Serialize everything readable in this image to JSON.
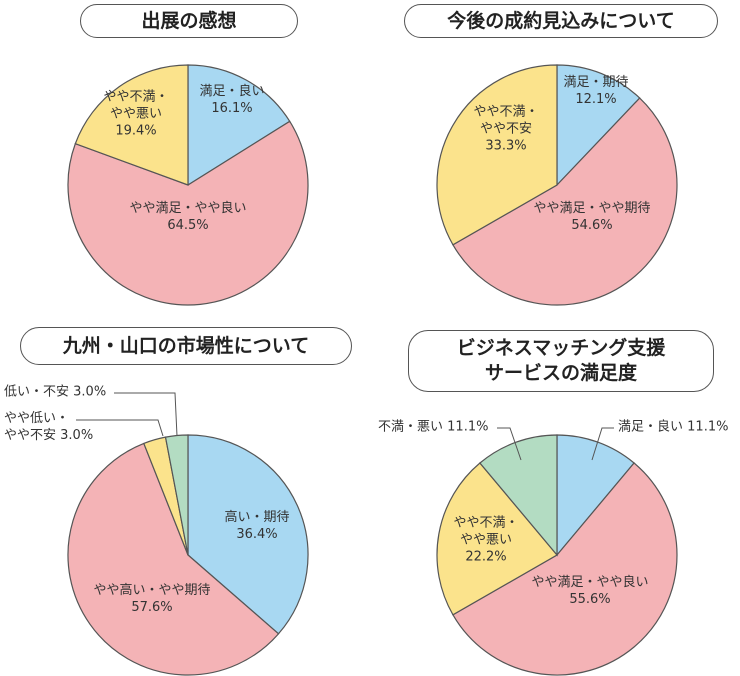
{
  "chart_data": [
    {
      "type": "pie",
      "title": "出展の感想",
      "categories": [
        "満足・良い",
        "やや満足・やや良い",
        "やや不満・\nやや悪い"
      ],
      "values": [
        16.1,
        64.5,
        19.4
      ],
      "value_labels": [
        "16.1%",
        "64.5%",
        "19.4%"
      ],
      "colors": [
        "#a8d8f2",
        "#f4b3b6",
        "#fbe38c"
      ]
    },
    {
      "type": "pie",
      "title": "今後の成約見込みについて",
      "categories": [
        "満足・期待",
        "やや満足・やや期待",
        "やや不満・\nやや不安"
      ],
      "values": [
        12.1,
        54.6,
        33.3
      ],
      "value_labels": [
        "12.1%",
        "54.6%",
        "33.3%"
      ],
      "colors": [
        "#a8d8f2",
        "#f4b3b6",
        "#fbe38c"
      ]
    },
    {
      "type": "pie",
      "title": "九州・山口の市場性について",
      "categories": [
        "高い・期待",
        "やや高い・やや期待",
        "やや低い・\nやや不安",
        "低い・不安"
      ],
      "values": [
        36.4,
        57.6,
        3.0,
        3.0
      ],
      "value_labels": [
        "36.4%",
        "57.6%",
        "3.0%",
        "3.0%"
      ],
      "colors": [
        "#a8d8f2",
        "#f4b3b6",
        "#fbe38c",
        "#b3dcc2"
      ]
    },
    {
      "type": "pie",
      "title": "ビジネスマッチング支援\nサービスの満足度",
      "categories": [
        "満足・良い",
        "やや満足・やや良い",
        "やや不満・\nやや悪い",
        "不満・悪い"
      ],
      "values": [
        11.1,
        55.6,
        22.2,
        11.1
      ],
      "value_labels": [
        "11.1%",
        "55.6%",
        "22.2%",
        "11.1%"
      ],
      "colors": [
        "#a8d8f2",
        "#f4b3b6",
        "#fbe38c",
        "#b3dcc2"
      ]
    }
  ]
}
